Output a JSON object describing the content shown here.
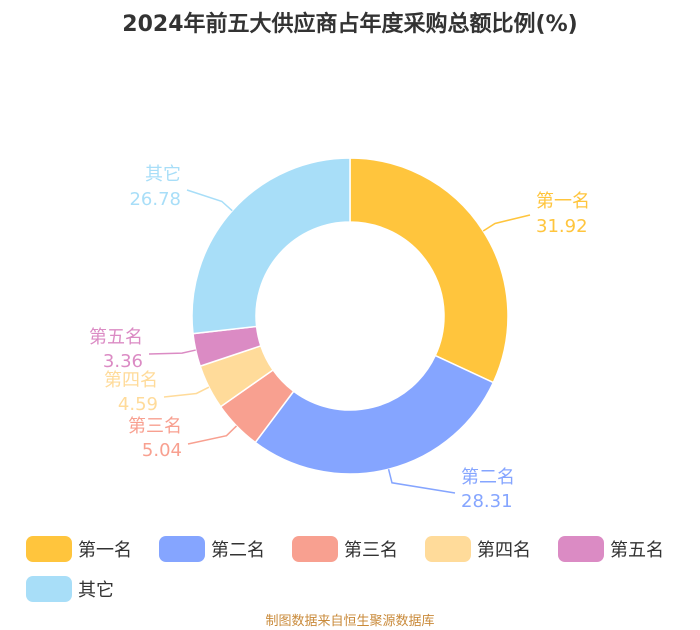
{
  "chart_data": {
    "type": "pie",
    "title": "2024年前五大供应商占年度采购总额比例(%)",
    "donut": true,
    "categories": [
      "第一名",
      "第二名",
      "第三名",
      "第四名",
      "第五名",
      "其它"
    ],
    "values": [
      31.92,
      28.31,
      5.04,
      4.59,
      3.36,
      26.78
    ],
    "value_labels": [
      "31.92",
      "28.31",
      "5.04",
      "4.59",
      "3.36",
      "26.78"
    ],
    "colors": [
      "#FFC53D",
      "#85A5FF",
      "#F8A090",
      "#FFDB9A",
      "#DB8BC4",
      "#A8DEF8"
    ],
    "legend_position": "bottom"
  },
  "source": "制图数据来自恒生聚源数据库"
}
